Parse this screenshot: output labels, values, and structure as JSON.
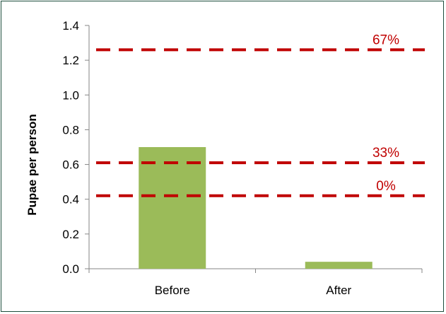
{
  "chart_data": {
    "type": "bar",
    "title": "",
    "xlabel": "",
    "ylabel": "Pupae per person",
    "categories": [
      "Before",
      "After"
    ],
    "values": [
      0.7,
      0.04
    ],
    "ylim": [
      0,
      1.4
    ],
    "yticks": [
      0.0,
      0.2,
      0.4,
      0.6,
      0.8,
      1.0,
      1.2,
      1.4
    ],
    "ytick_labels": [
      "0.0",
      "0.2",
      "0.4",
      "0.6",
      "0.8",
      "1.0",
      "1.2",
      "1.4"
    ],
    "grid": false,
    "bar_color": "#9bbb59",
    "reference_lines": [
      {
        "label": "67%",
        "value": 1.26
      },
      {
        "label": "33%",
        "value": 0.61
      },
      {
        "label": "0%",
        "value": 0.42
      }
    ],
    "reference_line_color": "#c00000",
    "reference_line_style": "dashed"
  }
}
